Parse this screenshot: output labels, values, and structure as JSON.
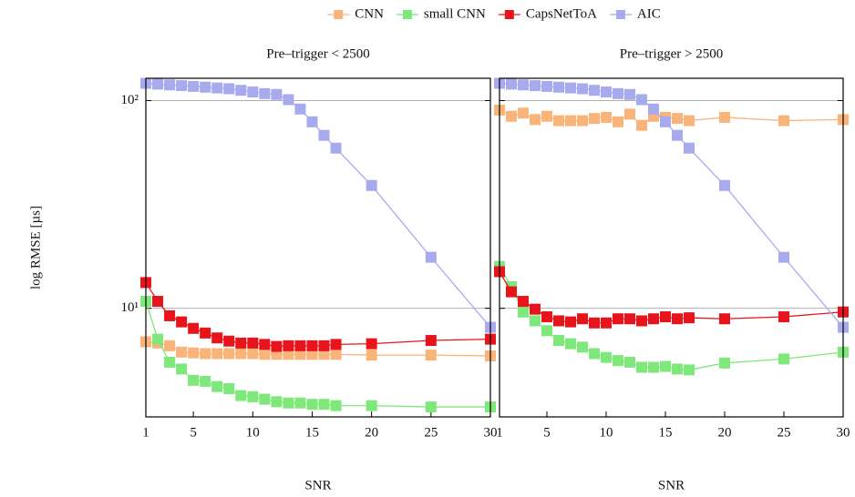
{
  "chart_data": [
    {
      "type": "line",
      "title": "Pre–trigger < 2500",
      "x_label": "SNR",
      "y_label": "log RMSE [µs]",
      "log_y": true,
      "grid": true,
      "legend": "top",
      "x": [
        1,
        2,
        3,
        4,
        5,
        6,
        7,
        8,
        9,
        10,
        11,
        12,
        13,
        14,
        15,
        16,
        17,
        20,
        25,
        30
      ],
      "xlim": [
        1,
        30
      ],
      "xticks": [
        1,
        5,
        10,
        15,
        20,
        25,
        30
      ],
      "ylim": [
        3,
        128
      ],
      "yticks": [
        {
          "value": 10,
          "label": "10¹"
        },
        {
          "value": 100,
          "label": "10²"
        }
      ],
      "series": [
        {
          "name": "CNN",
          "color": "#f9b47a",
          "values": [
            6.9,
            6.8,
            6.6,
            6.15,
            6.1,
            6.05,
            6.05,
            6.05,
            6.05,
            6.05,
            6.0,
            6.0,
            6.0,
            6.0,
            6.0,
            6.0,
            6.0,
            5.95,
            5.95,
            5.9
          ]
        },
        {
          "name": "small CNN",
          "color": "#7ee87a",
          "values": [
            10.8,
            7.1,
            5.5,
            5.1,
            4.5,
            4.45,
            4.2,
            4.1,
            3.8,
            3.75,
            3.65,
            3.55,
            3.5,
            3.5,
            3.45,
            3.45,
            3.4,
            3.4,
            3.35,
            3.35
          ]
        },
        {
          "name": "CapsNetToA",
          "color": "#e8141c",
          "values": [
            13.3,
            10.8,
            9.2,
            8.6,
            8.0,
            7.6,
            7.2,
            6.95,
            6.8,
            6.8,
            6.7,
            6.55,
            6.6,
            6.6,
            6.6,
            6.6,
            6.7,
            6.75,
            7.0,
            7.1
          ]
        },
        {
          "name": "AIC",
          "color": "#a8aaee",
          "values": [
            121,
            120,
            119,
            118,
            117,
            116,
            115,
            114,
            112,
            110,
            108,
            107,
            101,
            91,
            79,
            68,
            59,
            39,
            17.6,
            8.1
          ]
        }
      ]
    },
    {
      "type": "line",
      "title": "Pre–trigger > 2500",
      "x_label": "SNR",
      "log_y": true,
      "grid": true,
      "x": [
        1,
        2,
        3,
        4,
        5,
        6,
        7,
        8,
        9,
        10,
        11,
        12,
        13,
        14,
        15,
        16,
        17,
        20,
        25,
        30
      ],
      "xlim": [
        1,
        30
      ],
      "xticks": [
        1,
        5,
        10,
        15,
        20,
        25,
        30
      ],
      "ylim": [
        3,
        128
      ],
      "yticks": [
        10,
        100
      ],
      "series": [
        {
          "color": "#f9b47a",
          "values": [
            90,
            84,
            87,
            81,
            84,
            80,
            80,
            80,
            82,
            83,
            79,
            86,
            76,
            84,
            83,
            82,
            80,
            83,
            80,
            81
          ]
        },
        {
          "color": "#7ee87a",
          "values": [
            15.9,
            12.7,
            9.6,
            8.7,
            7.8,
            7.0,
            6.75,
            6.5,
            6.05,
            5.8,
            5.6,
            5.5,
            5.2,
            5.2,
            5.25,
            5.1,
            5.05,
            5.45,
            5.7,
            6.15
          ]
        },
        {
          "color": "#e8141c",
          "values": [
            15,
            12,
            10.8,
            9.9,
            9.1,
            8.7,
            8.6,
            8.9,
            8.5,
            8.5,
            8.9,
            8.9,
            8.7,
            8.9,
            9.1,
            8.9,
            9.0,
            8.9,
            9.1,
            9.6
          ]
        },
        {
          "color": "#a8aaee",
          "values": [
            121,
            120,
            119,
            118,
            117,
            116,
            115,
            114,
            112,
            110,
            108,
            107,
            101,
            91,
            79,
            68,
            59,
            39,
            17.6,
            8.1
          ]
        }
      ]
    }
  ]
}
